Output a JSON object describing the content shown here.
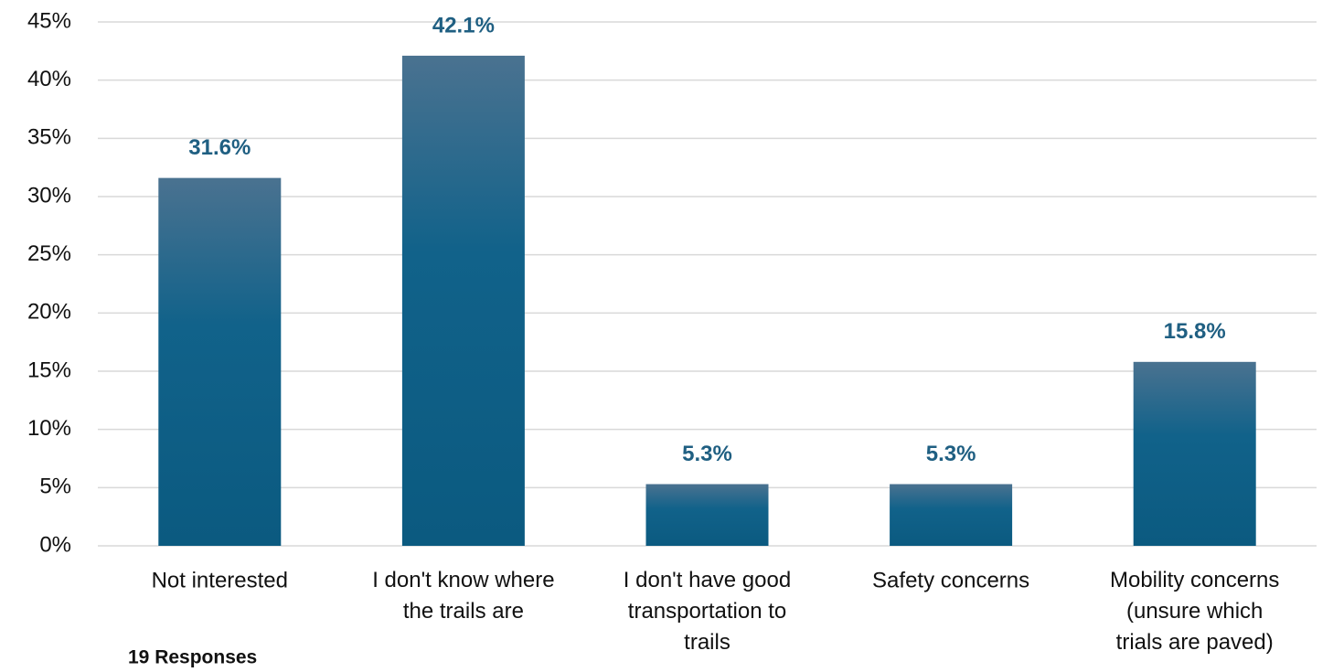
{
  "chart_data": {
    "type": "bar",
    "categories": [
      "Not interested",
      "I don't know where\nthe trails are",
      "I don't have good\ntransportation to\ntrails",
      "Safety concerns",
      "Mobility concerns\n(unsure which\ntrials are paved)"
    ],
    "values": [
      31.6,
      42.1,
      5.3,
      5.3,
      15.8
    ],
    "value_labels": [
      "31.6%",
      "42.1%",
      "5.3%",
      "5.3%",
      "15.8%"
    ],
    "color": "#0b5a80",
    "ylim": [
      0,
      45
    ],
    "yticks": [
      {
        "value": 0,
        "label": "0%"
      },
      {
        "value": 5,
        "label": "5%"
      },
      {
        "value": 10,
        "label": "10%"
      },
      {
        "value": 15,
        "label": "15%"
      },
      {
        "value": 20,
        "label": "20%"
      },
      {
        "value": 25,
        "label": "25%"
      },
      {
        "value": 30,
        "label": "30%"
      },
      {
        "value": 35,
        "label": "35%"
      },
      {
        "value": 40,
        "label": "40%"
      },
      {
        "value": 45,
        "label": "45%"
      }
    ],
    "grid": true,
    "annotation": "19 Responses"
  }
}
